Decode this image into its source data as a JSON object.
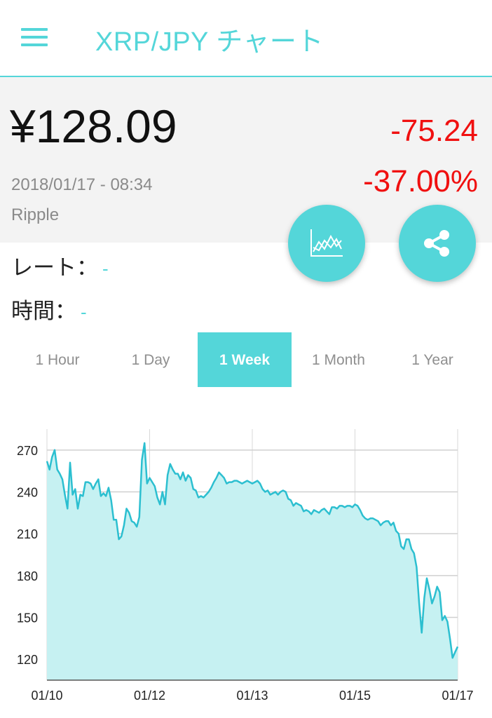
{
  "app": {
    "title": "XRP/JPY チャート"
  },
  "summary": {
    "price": "¥128.09",
    "timestamp": "2018/01/17 - 08:34",
    "coin": "Ripple",
    "change_abs": "-75.24",
    "change_pct": "-37.00%"
  },
  "info": {
    "rate_label": "レート：",
    "rate_value": "-",
    "time_label": "時間：",
    "time_value": "-"
  },
  "tabs": [
    {
      "label": "1 Hour",
      "active": false
    },
    {
      "label": "1 Day",
      "active": false
    },
    {
      "label": "1 Week",
      "active": true
    },
    {
      "label": "1 Month",
      "active": false
    },
    {
      "label": "1 Year",
      "active": false
    }
  ],
  "colors": {
    "accent": "#54d6d9",
    "negative": "#f01010",
    "area_fill": "#c6f1f2"
  },
  "icons": {
    "menu": "hamburger-menu-icon",
    "chart": "line-chart-icon",
    "share": "share-icon"
  },
  "chart_data": {
    "type": "area",
    "x_ticks": [
      "01/10",
      "01/12",
      "01/13",
      "01/15",
      "01/17"
    ],
    "y_ticks": [
      120,
      150,
      180,
      210,
      240,
      270
    ],
    "ylim": [
      105,
      285
    ],
    "grid": true,
    "series": [
      {
        "values": [
          262,
          256,
          265,
          270,
          256,
          253,
          249,
          238,
          228,
          261,
          238,
          242,
          228,
          238,
          237,
          247,
          247,
          246,
          242,
          246,
          249,
          237,
          239,
          237,
          243,
          234,
          220,
          220,
          206,
          208,
          216,
          228,
          225,
          219,
          218,
          215,
          222,
          263,
          275,
          246,
          250,
          247,
          244,
          236,
          231,
          240,
          231,
          252,
          260,
          256,
          253,
          253,
          249,
          254,
          248,
          252,
          250,
          242,
          241,
          236,
          237,
          236,
          238,
          240,
          243,
          247,
          250,
          254,
          252,
          250,
          246,
          247,
          247,
          248,
          248,
          247,
          246,
          247,
          248,
          247,
          246,
          247,
          248,
          246,
          242,
          240,
          241,
          238,
          239,
          240,
          238,
          240,
          241,
          240,
          235,
          234,
          230,
          232,
          231,
          230,
          226,
          227,
          226,
          224,
          227,
          226,
          225,
          227,
          228,
          226,
          224,
          229,
          229,
          228,
          230,
          230,
          229,
          230,
          230,
          229,
          231,
          230,
          227,
          223,
          221,
          220,
          221,
          221,
          220,
          219,
          216,
          218,
          219,
          219,
          216,
          218,
          212,
          210,
          201,
          199,
          206,
          206,
          199,
          196,
          186,
          160,
          139,
          164,
          178,
          170,
          160,
          165,
          172,
          168,
          148,
          151,
          147,
          135,
          121,
          125,
          129
        ]
      }
    ]
  }
}
